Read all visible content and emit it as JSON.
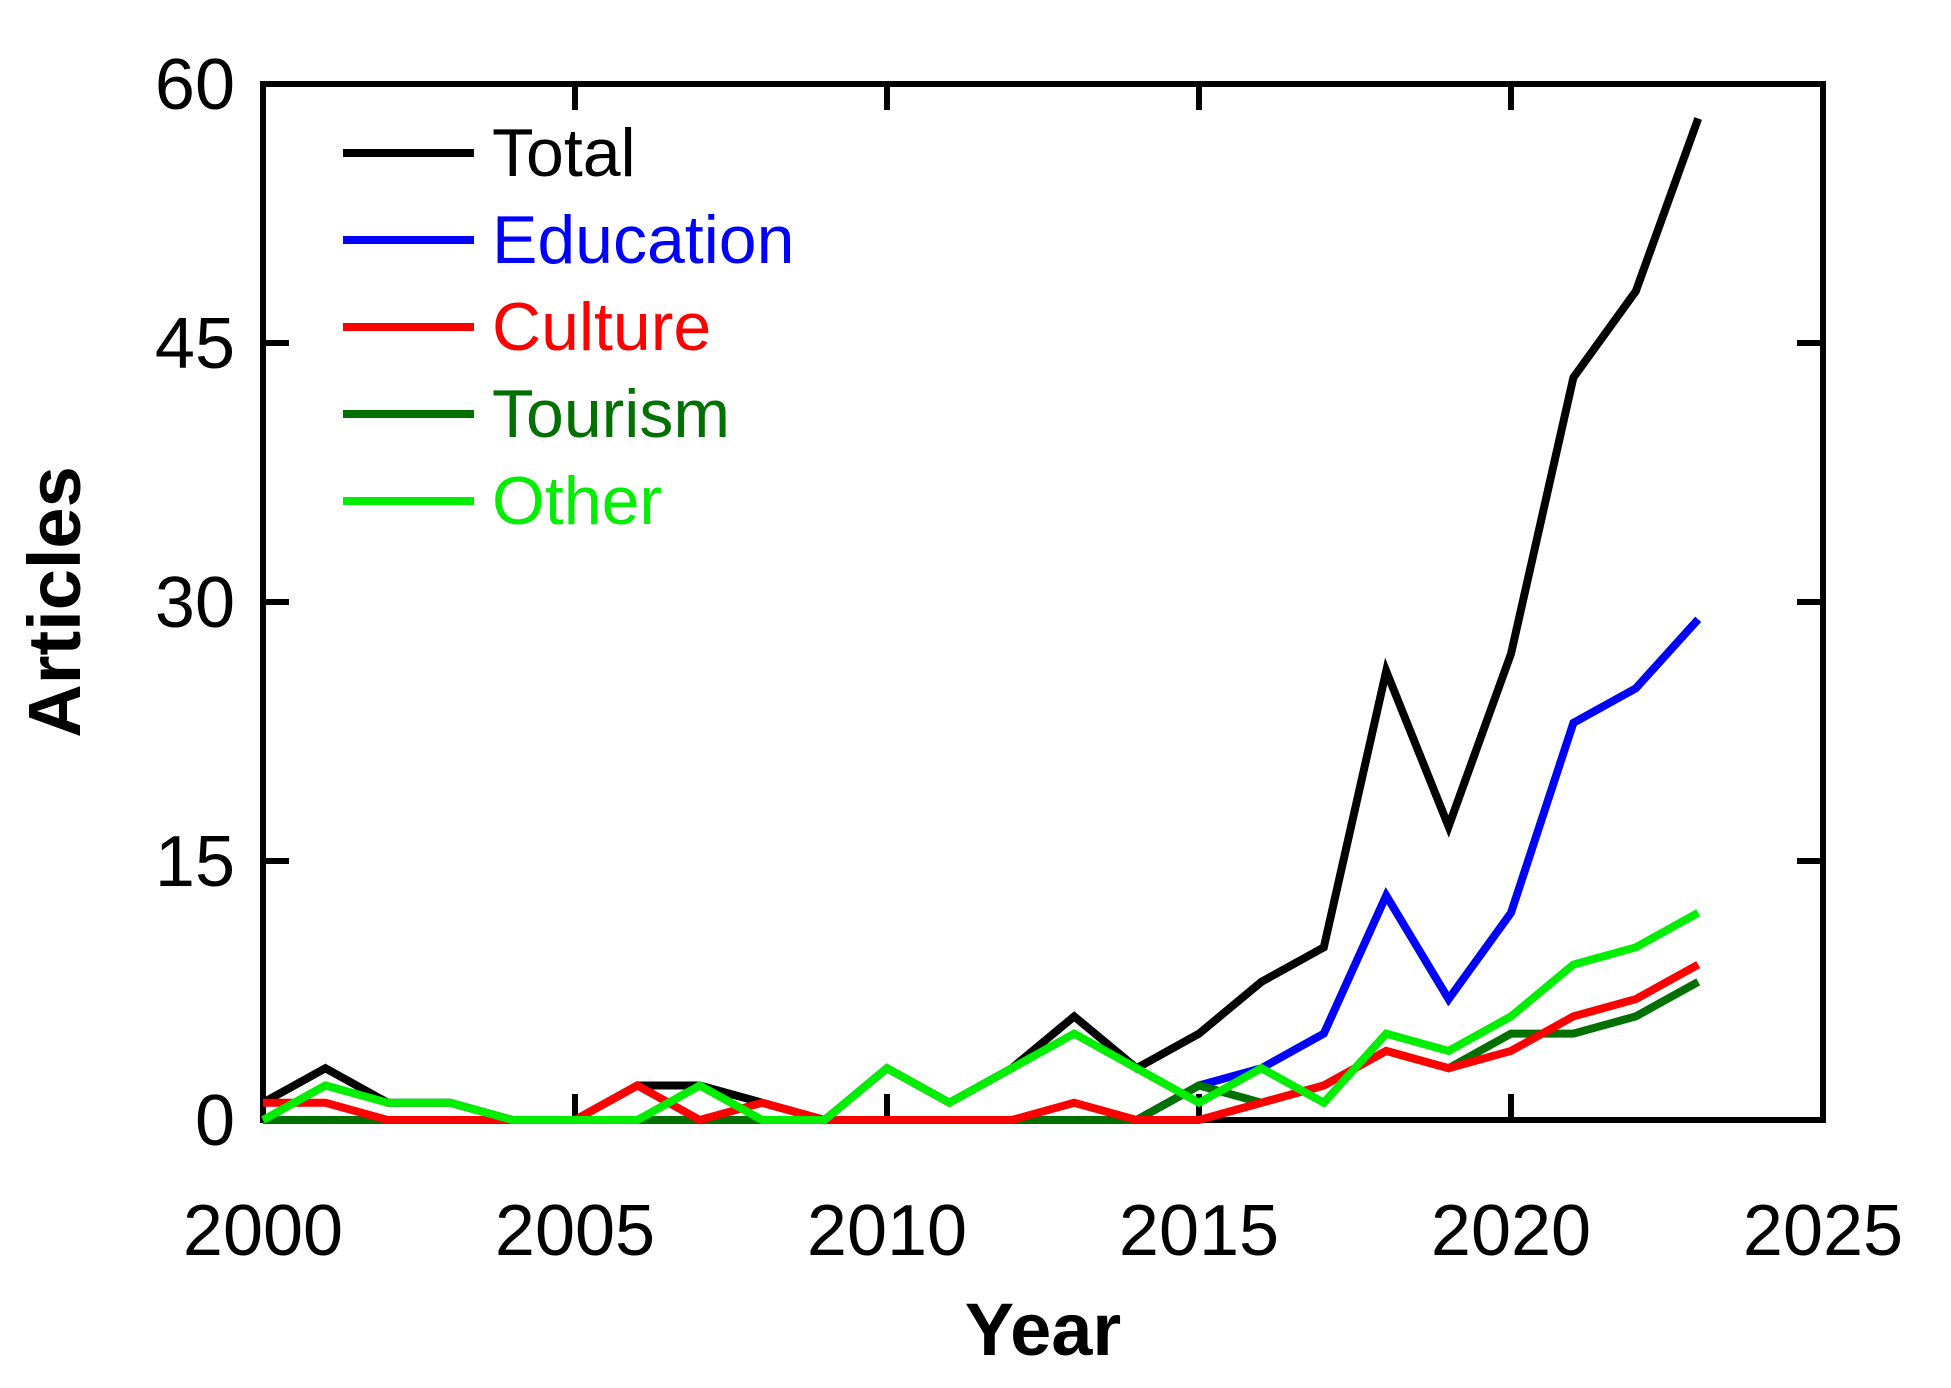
{
  "chart_data": {
    "type": "line",
    "title": "",
    "xlabel": "Year",
    "ylabel": "Articles",
    "xlim": [
      2000,
      2025
    ],
    "ylim": [
      0,
      60
    ],
    "xticks": [
      2000,
      2005,
      2010,
      2015,
      2020,
      2025
    ],
    "yticks": [
      0,
      15,
      30,
      45,
      60
    ],
    "grid": false,
    "box": true,
    "legend_position": "upper-left-inside",
    "x": [
      2000,
      2001,
      2002,
      2003,
      2004,
      2005,
      2006,
      2007,
      2008,
      2009,
      2010,
      2011,
      2012,
      2013,
      2014,
      2015,
      2016,
      2017,
      2018,
      2019,
      2020,
      2021,
      2022,
      2023
    ],
    "series": [
      {
        "name": "Total",
        "color": "#000000",
        "values": [
          1,
          3,
          1,
          1,
          0,
          0,
          2,
          2,
          1,
          0,
          3,
          1,
          3,
          6,
          3,
          5,
          8,
          10,
          26,
          17,
          27,
          43,
          48,
          58
        ]
      },
      {
        "name": "Education",
        "color": "#0000ff",
        "values": [
          0,
          0,
          0,
          0,
          0,
          0,
          0,
          0,
          0,
          0,
          0,
          0,
          0,
          0,
          0,
          2,
          3,
          5,
          13,
          7,
          12,
          23,
          25,
          29
        ]
      },
      {
        "name": "Culture",
        "color": "#ff0000",
        "values": [
          1,
          1,
          0,
          0,
          0,
          0,
          2,
          0,
          1,
          0,
          0,
          0,
          0,
          1,
          0,
          0,
          1,
          2,
          4,
          3,
          4,
          6,
          7,
          9
        ]
      },
      {
        "name": "Tourism",
        "color": "#007000",
        "values": [
          0,
          0,
          0,
          0,
          0,
          0,
          0,
          0,
          0,
          0,
          0,
          0,
          0,
          0,
          0,
          2,
          1,
          2,
          4,
          3,
          5,
          5,
          6,
          8
        ]
      },
      {
        "name": "Other",
        "color": "#00ee00",
        "values": [
          0,
          2,
          1,
          1,
          0,
          0,
          0,
          2,
          0,
          0,
          3,
          1,
          3,
          5,
          3,
          1,
          3,
          1,
          5,
          4,
          6,
          9,
          10,
          12
        ]
      }
    ],
    "draw_order": [
      "Total",
      "Education",
      "Tourism",
      "Culture",
      "Other"
    ],
    "legend_order": [
      "Total",
      "Education",
      "Culture",
      "Tourism",
      "Other"
    ],
    "axis_color": "#000000",
    "background_color": "#ffffff"
  }
}
